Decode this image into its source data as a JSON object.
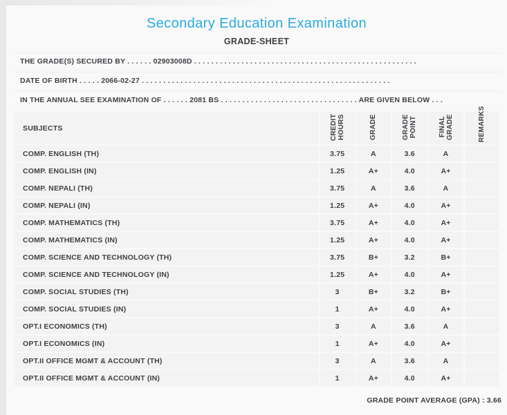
{
  "colors": {
    "accent_title": "#29abe2",
    "text": "#3e4045",
    "row_background": "#f3f3f3",
    "page_edge": "#e8e8e8"
  },
  "header": {
    "title": "Secondary Education Examination",
    "subtitle": "GRADE-SHEET"
  },
  "info_lines": [
    {
      "label": "THE GRADE(S) SECURED BY",
      "dots_before": ". . . . . .",
      "value": "02903008D",
      "dots_after": ". . . . . . . . . . . . . . . . . . . . . . . . . . . . . . . . . . . . . . . . . . . . . . . . . . . .",
      "suffix": "",
      "dots_end": ""
    },
    {
      "label": "DATE OF BIRTH",
      "dots_before": ". . . . .",
      "value": "2066-02-27",
      "dots_after": ". . . . . . . . . . . . . . . . . . . . . . . . . . . . . . . . . . . . . . . . . . . . . . . . . . . . . . . . . .",
      "suffix": "",
      "dots_end": ""
    },
    {
      "label": "IN THE ANNUAL SEE EXAMINATION OF",
      "dots_before": ". . . . . .",
      "value": "2081 BS",
      "dots_after": ". . . . . . . . . . . . . . . . . . . . . . . . . . . . . . . .",
      "suffix": "ARE GIVEN BELOW",
      "dots_end": ". . ."
    }
  ],
  "table": {
    "headers": {
      "subjects": "SUBJECTS",
      "credit_hours": "CREDIT HOURS",
      "grade": "GRADE",
      "grade_point": "GRADE POINT",
      "final_grade": "FINAL GRADE",
      "remarks": "REMARKS"
    },
    "rows": [
      {
        "subject": "COMP. ENGLISH (TH)",
        "credit_hours": "3.75",
        "grade": "A",
        "grade_point": "3.6",
        "final_grade": "A",
        "remarks": ""
      },
      {
        "subject": "COMP. ENGLISH (IN)",
        "credit_hours": "1.25",
        "grade": "A+",
        "grade_point": "4.0",
        "final_grade": "A+",
        "remarks": ""
      },
      {
        "subject": "COMP. NEPALI (TH)",
        "credit_hours": "3.75",
        "grade": "A",
        "grade_point": "3.6",
        "final_grade": "A",
        "remarks": ""
      },
      {
        "subject": "COMP. NEPALI (IN)",
        "credit_hours": "1.25",
        "grade": "A+",
        "grade_point": "4.0",
        "final_grade": "A+",
        "remarks": ""
      },
      {
        "subject": "COMP. MATHEMATICS (TH)",
        "credit_hours": "3.75",
        "grade": "A+",
        "grade_point": "4.0",
        "final_grade": "A+",
        "remarks": ""
      },
      {
        "subject": "COMP. MATHEMATICS (IN)",
        "credit_hours": "1.25",
        "grade": "A+",
        "grade_point": "4.0",
        "final_grade": "A+",
        "remarks": ""
      },
      {
        "subject": "COMP. SCIENCE AND TECHNOLOGY (TH)",
        "credit_hours": "3.75",
        "grade": "B+",
        "grade_point": "3.2",
        "final_grade": "B+",
        "remarks": ""
      },
      {
        "subject": "COMP. SCIENCE AND TECHNOLOGY (IN)",
        "credit_hours": "1.25",
        "grade": "A+",
        "grade_point": "4.0",
        "final_grade": "A+",
        "remarks": ""
      },
      {
        "subject": "COMP. SOCIAL STUDIES (TH)",
        "credit_hours": "3",
        "grade": "B+",
        "grade_point": "3.2",
        "final_grade": "B+",
        "remarks": ""
      },
      {
        "subject": "COMP. SOCIAL STUDIES (IN)",
        "credit_hours": "1",
        "grade": "A+",
        "grade_point": "4.0",
        "final_grade": "A+",
        "remarks": ""
      },
      {
        "subject": "OPT.I ECONOMICS (TH)",
        "credit_hours": "3",
        "grade": "A",
        "grade_point": "3.6",
        "final_grade": "A",
        "remarks": ""
      },
      {
        "subject": "OPT.I ECONOMICS (IN)",
        "credit_hours": "1",
        "grade": "A+",
        "grade_point": "4.0",
        "final_grade": "A+",
        "remarks": ""
      },
      {
        "subject": "OPT.II OFFICE MGMT & ACCOUNT (TH)",
        "credit_hours": "3",
        "grade": "A",
        "grade_point": "3.6",
        "final_grade": "A",
        "remarks": ""
      },
      {
        "subject": "OPT.II OFFICE MGMT & ACCOUNT (IN)",
        "credit_hours": "1",
        "grade": "A+",
        "grade_point": "4.0",
        "final_grade": "A+",
        "remarks": ""
      }
    ]
  },
  "footer": {
    "gpa_label": "GRADE POINT AVERAGE (GPA) :",
    "gpa_value": "3.66"
  }
}
